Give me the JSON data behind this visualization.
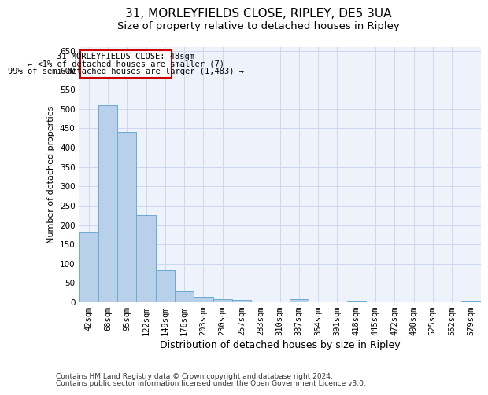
{
  "title": "31, MORLEYFIELDS CLOSE, RIPLEY, DE5 3UA",
  "subtitle": "Size of property relative to detached houses in Ripley",
  "xlabel": "Distribution of detached houses by size in Ripley",
  "ylabel": "Number of detached properties",
  "categories": [
    "42sqm",
    "68sqm",
    "95sqm",
    "122sqm",
    "149sqm",
    "176sqm",
    "203sqm",
    "230sqm",
    "257sqm",
    "283sqm",
    "310sqm",
    "337sqm",
    "364sqm",
    "391sqm",
    "418sqm",
    "445sqm",
    "472sqm",
    "498sqm",
    "525sqm",
    "552sqm",
    "579sqm"
  ],
  "values": [
    181,
    509,
    441,
    226,
    84,
    28,
    15,
    9,
    6,
    0,
    0,
    8,
    0,
    0,
    5,
    0,
    0,
    0,
    0,
    0,
    4
  ],
  "bar_color": "#b8d0ea",
  "bar_edge_color": "#6aaad4",
  "annotation_box_edgecolor": "#cc0000",
  "annotation_line1": "31 MORLEYFIELDS CLOSE: 48sqm",
  "annotation_line2": "← <1% of detached houses are smaller (7)",
  "annotation_line3": "99% of semi-detached houses are larger (1,483) →",
  "ylim": [
    0,
    660
  ],
  "yticks": [
    0,
    50,
    100,
    150,
    200,
    250,
    300,
    350,
    400,
    450,
    500,
    550,
    600,
    650
  ],
  "footer_line1": "Contains HM Land Registry data © Crown copyright and database right 2024.",
  "footer_line2": "Contains public sector information licensed under the Open Government Licence v3.0.",
  "background_color": "#edf2fb",
  "grid_color": "#cdd8ee",
  "title_fontsize": 11,
  "subtitle_fontsize": 9.5,
  "xlabel_fontsize": 9,
  "ylabel_fontsize": 8,
  "tick_fontsize": 7.5,
  "annot_fontsize": 7.5,
  "footer_fontsize": 6.5
}
